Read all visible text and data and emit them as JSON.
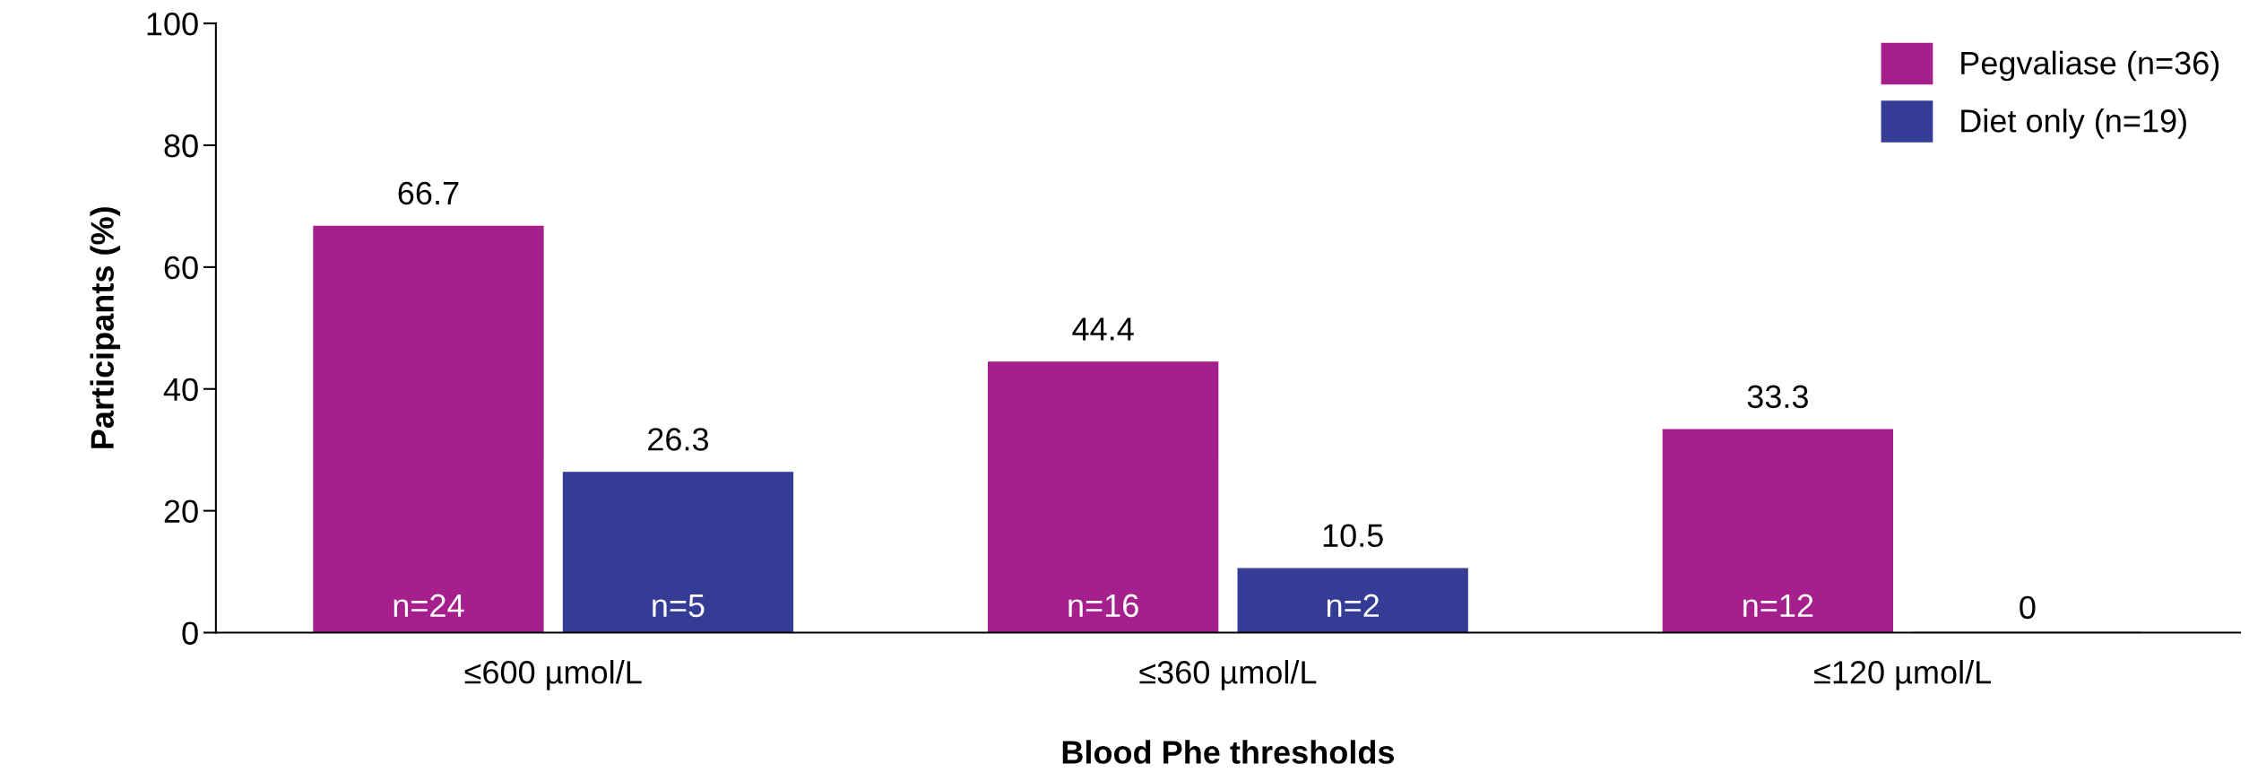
{
  "chart_data": {
    "type": "bar",
    "xlabel": "Blood Phe thresholds",
    "ylabel": "Participants (%)",
    "categories": [
      "≤600 µmol/L",
      "≤360 µmol/L",
      "≤120 µmol/L"
    ],
    "series": [
      {
        "name": "Pegvaliase (n=36)",
        "color": "#a5208c",
        "values": [
          66.7,
          44.4,
          33.3
        ]
      },
      {
        "name": "Diet only (n=19)",
        "color": "#343c96",
        "values": [
          26.3,
          10.5,
          0
        ]
      }
    ],
    "ylim": [
      0,
      100
    ],
    "yticks": [
      0,
      20,
      40,
      60,
      80,
      100
    ],
    "data_labels": true,
    "legend": "top right",
    "grid": false,
    "annotations": [
      "n=24",
      "n=5",
      "n=16",
      "n=2",
      "n=12"
    ]
  }
}
